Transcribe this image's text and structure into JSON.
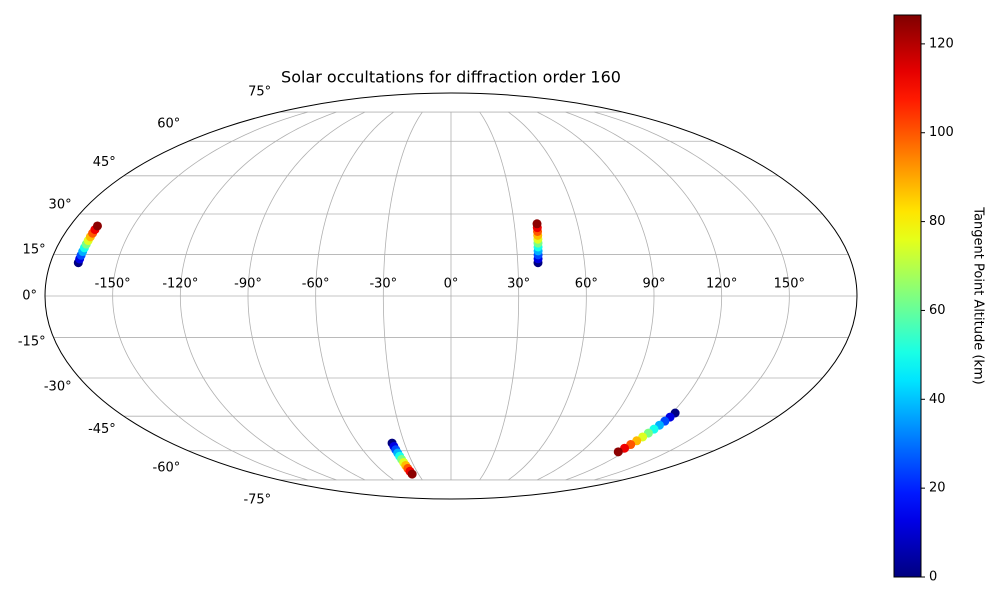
{
  "chart_data": {
    "type": "scatter",
    "projection": "mollweide",
    "title": "Solar occultations for diffraction order 160",
    "xlim": [
      -180,
      180
    ],
    "ylim": [
      -90,
      90
    ],
    "xticks": [
      {
        "value": -150,
        "label": "-150°"
      },
      {
        "value": -120,
        "label": "-120°"
      },
      {
        "value": -90,
        "label": "-90°"
      },
      {
        "value": -60,
        "label": "-60°"
      },
      {
        "value": -30,
        "label": "-30°"
      },
      {
        "value": 0,
        "label": "0°"
      },
      {
        "value": 30,
        "label": "30°"
      },
      {
        "value": 60,
        "label": "60°"
      },
      {
        "value": 90,
        "label": "90°"
      },
      {
        "value": 120,
        "label": "120°"
      },
      {
        "value": 150,
        "label": "150°"
      }
    ],
    "yticks": [
      {
        "value": -75,
        "label": "-75°"
      },
      {
        "value": -60,
        "label": "-60°"
      },
      {
        "value": -45,
        "label": "-45°"
      },
      {
        "value": -30,
        "label": "-30°"
      },
      {
        "value": -15,
        "label": "-15°"
      },
      {
        "value": 0,
        "label": "0°"
      },
      {
        "value": 15,
        "label": "15°"
      },
      {
        "value": 30,
        "label": "30°"
      },
      {
        "value": 45,
        "label": "45°"
      },
      {
        "value": 60,
        "label": "60°"
      },
      {
        "value": 75,
        "label": "75°"
      }
    ],
    "grid": true,
    "colormap": "jet",
    "x": [
      -167.5,
      -167.45,
      -167.4,
      -167.35,
      -167.3,
      -167.25,
      -167.2,
      -167.15,
      -167.1,
      -167.05,
      -167,
      39.1,
      39.27,
      39.44,
      39.61,
      39.78,
      39.95,
      40.12,
      40.29,
      40.46,
      40.63,
      40.8,
      -37.9,
      -37.7,
      -37.5,
      -37.3,
      -37.1,
      -36.9,
      -36.7,
      -36.5,
      -36.3,
      -36.1,
      -35.9,
      121.6,
      121.01,
      120.42,
      119.83,
      119.24,
      118.65,
      118.06,
      117.47,
      116.88,
      116.29,
      115.7
    ],
    "y": [
      12,
      13.35,
      14.7,
      16.05,
      17.4,
      18.75,
      20.1,
      21.45,
      22.8,
      24.15,
      25.5,
      12,
      13.43,
      14.86,
      16.29,
      17.72,
      19.15,
      20.58,
      22.01,
      23.44,
      24.87,
      26.3,
      -56.5,
      -58.02,
      -59.54,
      -61.06,
      -62.58,
      -64.1,
      -65.62,
      -67.14,
      -68.66,
      -70.18,
      -71.7,
      -43.7,
      -45.38,
      -47.06,
      -48.74,
      -50.42,
      -52.1,
      -53.78,
      -55.46,
      -57.14,
      -58.82,
      -60.5
    ],
    "c": [
      0,
      12.5,
      25,
      37.5,
      50,
      62.5,
      75,
      87.5,
      100,
      112.5,
      125,
      0,
      12.5,
      25,
      37.5,
      50,
      62.5,
      75,
      87.5,
      100,
      112.5,
      125,
      0,
      12.5,
      25,
      37.5,
      50,
      62.5,
      75,
      87.5,
      100,
      112.5,
      125,
      0,
      12.5,
      25,
      37.5,
      50,
      62.5,
      75,
      87.5,
      100,
      112.5,
      125
    ],
    "colorbar": {
      "label": "Tangent Point Altitude (km)",
      "clim": [
        0,
        126.5
      ],
      "ticks": [
        0,
        20,
        40,
        60,
        80,
        100,
        120
      ]
    }
  }
}
